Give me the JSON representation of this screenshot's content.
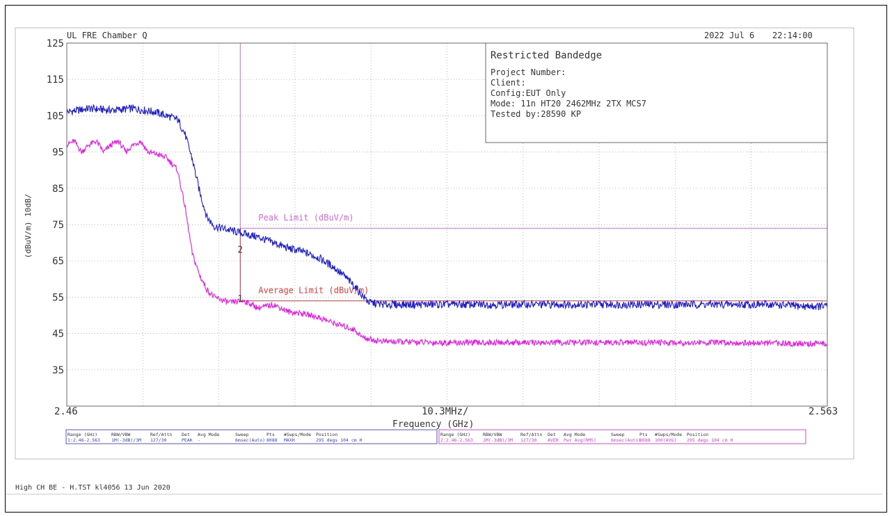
{
  "header": {
    "left": "UL FRE Chamber Q",
    "date": "2022 Jul 6",
    "time": "22:14:00"
  },
  "info_box": {
    "title": "Restricted Bandedge",
    "lines": [
      "Project Number:",
      "Client:",
      "Config:EUT Only",
      "Mode: 11n HT20 2462MHz 2TX MCS7",
      "Tested by:28590 KP"
    ]
  },
  "chart_data": {
    "type": "line",
    "title": "Restricted Bandedge",
    "xlabel": "Frequency (GHz)",
    "ylabel": "(dBuV/m)   10dB/",
    "x_span_label": "10.3MHz/",
    "x_start_label": "2.46",
    "x_end_label": "2.563",
    "xlim": [
      2.46,
      2.563
    ],
    "ylim": [
      25,
      125
    ],
    "y_ticks": [
      125,
      115,
      105,
      95,
      85,
      75,
      65,
      55,
      45,
      35
    ],
    "grid": true,
    "series": [
      {
        "color": "#1b1bd0",
        "x": [
          2.46,
          2.463,
          2.466,
          2.469,
          2.472,
          2.4735,
          2.475,
          2.476,
          2.477,
          2.478,
          2.479,
          2.48,
          2.482,
          2.484,
          2.486,
          2.488,
          2.49,
          2.492,
          2.494,
          2.496,
          2.4975,
          2.499,
          2.5,
          2.501,
          2.503,
          2.505,
          2.508,
          2.512,
          2.516,
          2.52,
          2.525,
          2.53,
          2.535,
          2.54,
          2.545,
          2.55,
          2.555,
          2.56,
          2.563
        ],
        "y": [
          106,
          107,
          106.5,
          107,
          106,
          105,
          104,
          100,
          93,
          84,
          77,
          74.5,
          73.5,
          72.5,
          71.5,
          70,
          68.5,
          67.5,
          66,
          63.5,
          61,
          58,
          55.5,
          53.5,
          53,
          53,
          53,
          53,
          53,
          53,
          53,
          53,
          53,
          53,
          53,
          53,
          53,
          52.5,
          52.5
        ]
      },
      {
        "color": "#e81ae8",
        "x": [
          2.46,
          2.461,
          2.462,
          2.463,
          2.464,
          2.465,
          2.466,
          2.467,
          2.468,
          2.469,
          2.47,
          2.471,
          2.472,
          2.4735,
          2.475,
          2.476,
          2.477,
          2.478,
          2.479,
          2.48,
          2.482,
          2.484,
          2.486,
          2.488,
          2.49,
          2.492,
          2.494,
          2.496,
          2.4975,
          2.499,
          2.5,
          2.502,
          2.505,
          2.51,
          2.52,
          2.53,
          2.54,
          2.55,
          2.56,
          2.563
        ],
        "y": [
          97,
          98,
          95,
          97,
          98,
          95,
          97,
          98,
          95,
          97,
          98,
          95,
          94.5,
          93.5,
          90,
          80,
          67,
          61,
          57,
          55,
          53.5,
          54,
          52,
          53,
          51,
          50.5,
          49.5,
          48,
          47,
          46,
          44,
          43,
          42.7,
          42.5,
          42.5,
          42.5,
          42.5,
          42.5,
          42.2,
          42.2
        ]
      }
    ],
    "limits": [
      {
        "name": "Peak Limit (dBuV/m)",
        "value": 74,
        "color": "#e066e0"
      },
      {
        "name": "Average Limit (dBuV/m)",
        "value": 54,
        "color": "#e03b3b"
      }
    ],
    "band_edge_x": 2.4835,
    "markers": [
      {
        "label": "2",
        "x": 2.4835,
        "y": 68,
        "color": "#444"
      },
      {
        "label": "1",
        "x": 2.4835,
        "y": 54.5,
        "color": "#444"
      }
    ]
  },
  "settings_table": {
    "blue": {
      "headers": [
        "Range (GHz)",
        "RBW/VBW",
        "Ref/Attn",
        "Det",
        "Avg Mode",
        "Sweep",
        "Pts",
        "#Swps/Mode",
        "Position"
      ],
      "values": [
        "1:2.46-2.563",
        "1M(-3dB)/3M",
        "127/30",
        "PEAK",
        "-",
        "6msec(Auto)",
        "8088",
        "MAXH",
        "295 degs 104 cm H"
      ]
    },
    "magenta": {
      "headers": [
        "Range (GHz)",
        "RBW/VBW",
        "Ref/Attn",
        "Det",
        "Avg Mode",
        "Sweep",
        "Pts",
        "#Swps/Mode",
        "Position"
      ],
      "values": [
        "2:2.46-2.563",
        "1M(-3dB)/3M",
        "127/30",
        "AVER",
        "Pwr Avg(RMS)",
        "6msec(Auto)",
        "8088",
        "100(AVG)",
        "295 degs 104 cm H"
      ]
    }
  },
  "footer": {
    "text": "High CH BE - H.TST kl4056 13 Jun 2020"
  }
}
